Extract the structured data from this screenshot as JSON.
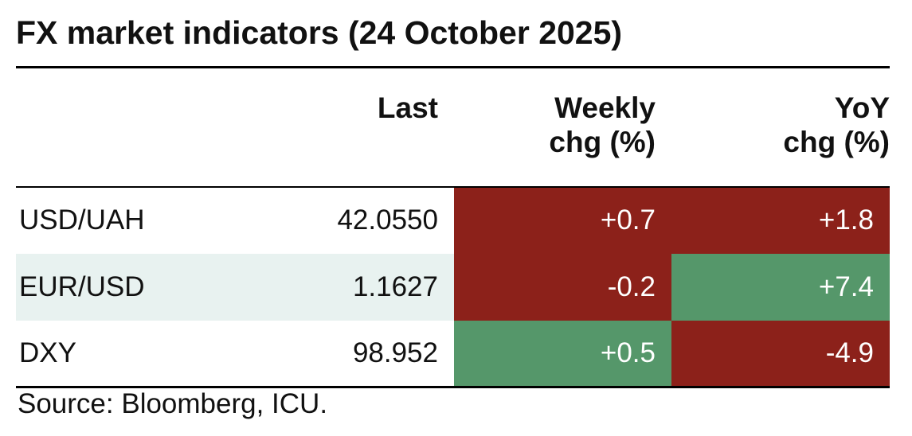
{
  "title": "FX market indicators (24 October 2025)",
  "table": {
    "headers": [
      [],
      [
        "Last"
      ],
      [
        "Weekly",
        "chg (%)"
      ],
      [
        "YoY",
        "chg (%)"
      ]
    ],
    "rows": [
      [
        "USD/UAH",
        "42.0550",
        "+0.7",
        "+1.8"
      ],
      [
        "EUR/USD",
        "1.1627",
        "-0.2",
        "+7.4"
      ],
      [
        "DXY",
        "98.952",
        "+0.5",
        "-4.9"
      ]
    ],
    "cell_colors": [
      [
        null,
        null,
        "#8c211a",
        "#8c211a"
      ],
      [
        null,
        null,
        "#8c211a",
        "#55976a"
      ],
      [
        null,
        null,
        "#55976a",
        "#8c211a"
      ]
    ],
    "row_shading": [
      null,
      "#e8f2f0",
      null
    ]
  },
  "source": "Source: Bloomberg, ICU."
}
